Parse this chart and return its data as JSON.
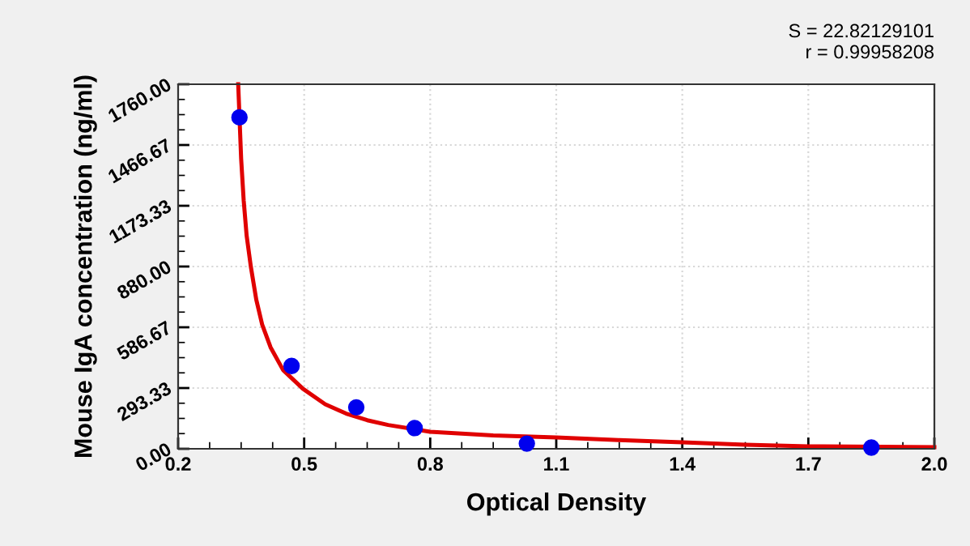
{
  "chart_data": {
    "type": "scatter",
    "xlabel": "Optical Density",
    "ylabel": "Mouse IgA concentration (ng/ml)",
    "annotations": [
      "S = 22.82129101",
      "r = 0.99958208"
    ],
    "series": [
      {
        "color": "#0000ee",
        "marker": "circle",
        "x": [
          0.346,
          0.47,
          0.624,
          0.763,
          1.03,
          1.85
        ],
        "values": [
          1600,
          400,
          200,
          100,
          25,
          6
        ]
      },
      {
        "type": "line",
        "color": "#e00000",
        "marker": "none",
        "line_style": "solid",
        "x": [
          0.343,
          0.35,
          0.356,
          0.363,
          0.373,
          0.386,
          0.4,
          0.42,
          0.45,
          0.497,
          0.55,
          0.6,
          0.65,
          0.7,
          0.8,
          0.95,
          1.1,
          1.25,
          1.4,
          1.55,
          1.7,
          2.0
        ],
        "values": [
          1760,
          1400,
          1200,
          1030,
          880,
          720,
          600,
          490,
          380,
          290,
          215,
          170,
          138,
          115,
          82,
          65,
          55,
          42,
          31,
          20,
          12,
          8
        ]
      }
    ],
    "xlim": [
      0.2,
      2.0
    ],
    "xticks": [
      0.2,
      0.5,
      0.8,
      1.1,
      1.4,
      1.7,
      {
        "value": 2.0,
        "label": "2.0"
      }
    ],
    "ylim": [
      0,
      1760
    ],
    "yticks": [
      {
        "value": 0,
        "label": "0.00"
      },
      {
        "value": 293.33,
        "label": "293.33"
      },
      {
        "value": 586.67,
        "label": "586.67"
      },
      {
        "value": 880,
        "label": "880.00"
      },
      {
        "value": 1173.33,
        "label": "1173.33"
      },
      {
        "value": 1466.67,
        "label": "1466.67"
      },
      {
        "value": 1760,
        "label": "1760.00"
      }
    ],
    "grid": true
  }
}
